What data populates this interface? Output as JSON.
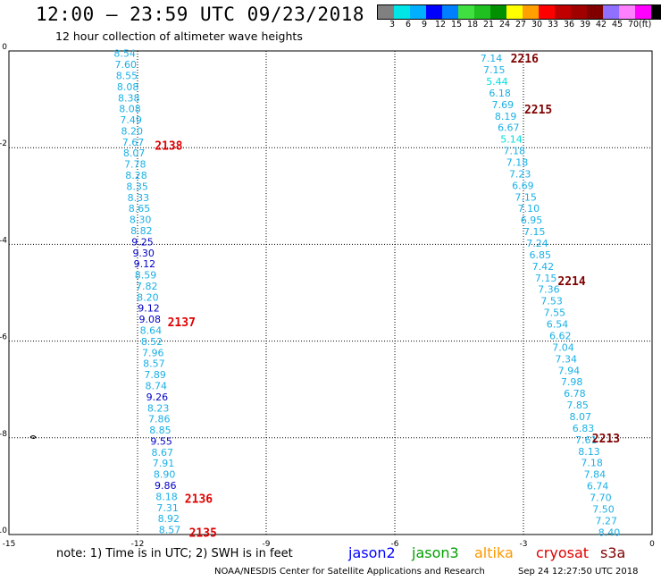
{
  "title": "12:00 – 23:59 UTC 09/23/2018",
  "subtitle": "12 hour collection of altimeter wave heights",
  "colorbar": {
    "colors": [
      "#808080",
      "#00e5e5",
      "#00b0ff",
      "#0000ff",
      "#0080ff",
      "#40e040",
      "#20c020",
      "#009000",
      "#ffff00",
      "#ffa000",
      "#ff0000",
      "#c00000",
      "#a00000",
      "#800000",
      "#9070ff",
      "#ff80ff",
      "#ff00ff",
      "#000000"
    ],
    "ticks": [
      "3",
      "6",
      "9",
      "12",
      "15",
      "18",
      "21",
      "24",
      "27",
      "30",
      "33",
      "36",
      "39",
      "42",
      "45",
      "70",
      "(ft)"
    ]
  },
  "axes": {
    "x_ticks": [
      "-15",
      "-12",
      "-9",
      "-6",
      "-3",
      "0"
    ],
    "x_values": [
      -15,
      -12,
      -9,
      -6,
      -3,
      0
    ],
    "y_ticks": [
      "0",
      "-2",
      "-4",
      "-6",
      "-8",
      "-10"
    ],
    "y_values": [
      0,
      -2,
      -4,
      -6,
      -8,
      -10
    ],
    "xlim": [
      -15,
      0
    ],
    "ylim": [
      -10,
      0
    ]
  },
  "passes": [
    {
      "label": "2138",
      "lon": -11.6,
      "lat": -1.95,
      "color": "#e00000"
    },
    {
      "label": "2137",
      "lon": -11.3,
      "lat": -5.6,
      "color": "#e00000"
    },
    {
      "label": "2136",
      "lon": -10.9,
      "lat": -9.25,
      "color": "#e00000"
    },
    {
      "label": "2135",
      "lon": -10.8,
      "lat": -9.95,
      "color": "#e00000"
    },
    {
      "label": "2216",
      "lon": -3.3,
      "lat": -0.15,
      "color": "#800000"
    },
    {
      "label": "2215",
      "lon": -2.98,
      "lat": -1.2,
      "color": "#800000"
    },
    {
      "label": "2214",
      "lon": -2.2,
      "lat": -4.75,
      "color": "#800000"
    },
    {
      "label": "2213",
      "lon": -1.4,
      "lat": -8.0,
      "color": "#800000"
    }
  ],
  "track_left": [
    {
      "v": "8.54",
      "c": "#1ab0e6"
    },
    {
      "v": "7.60",
      "c": "#1ab0e6"
    },
    {
      "v": "8.55",
      "c": "#1ab0e6"
    },
    {
      "v": "8.08",
      "c": "#1ab0e6"
    },
    {
      "v": "8.38",
      "c": "#1ab0e6"
    },
    {
      "v": "8.08",
      "c": "#1ab0e6"
    },
    {
      "v": "7.49",
      "c": "#1ab0e6"
    },
    {
      "v": "8.20",
      "c": "#1ab0e6"
    },
    {
      "v": "7.67",
      "c": "#1ab0e6"
    },
    {
      "v": "8.07",
      "c": "#1ab0e6"
    },
    {
      "v": "7.78",
      "c": "#1ab0e6"
    },
    {
      "v": "8.28",
      "c": "#1ab0e6"
    },
    {
      "v": "8.35",
      "c": "#1ab0e6"
    },
    {
      "v": "8.33",
      "c": "#1ab0e6"
    },
    {
      "v": "8.65",
      "c": "#1ab0e6"
    },
    {
      "v": "8.30",
      "c": "#1ab0e6"
    },
    {
      "v": "8.82",
      "c": "#1ab0e6"
    },
    {
      "v": "9.25",
      "c": "#0000c8"
    },
    {
      "v": "9.30",
      "c": "#0000c8"
    },
    {
      "v": "9.12",
      "c": "#0000c8"
    },
    {
      "v": "8.59",
      "c": "#1ab0e6"
    },
    {
      "v": "7.82",
      "c": "#1ab0e6"
    },
    {
      "v": "8.20",
      "c": "#1ab0e6"
    },
    {
      "v": "9.12",
      "c": "#0000c8"
    },
    {
      "v": "9.08",
      "c": "#0000c8"
    },
    {
      "v": "8.64",
      "c": "#1ab0e6"
    },
    {
      "v": "8.52",
      "c": "#1ab0e6"
    },
    {
      "v": "7.96",
      "c": "#1ab0e6"
    },
    {
      "v": "8.57",
      "c": "#1ab0e6"
    },
    {
      "v": "7.89",
      "c": "#1ab0e6"
    },
    {
      "v": "8.74",
      "c": "#1ab0e6"
    },
    {
      "v": "9.26",
      "c": "#0000c8"
    },
    {
      "v": "8.23",
      "c": "#1ab0e6"
    },
    {
      "v": "7.86",
      "c": "#1ab0e6"
    },
    {
      "v": "8.85",
      "c": "#1ab0e6"
    },
    {
      "v": "9.55",
      "c": "#0000c8"
    },
    {
      "v": "8.67",
      "c": "#1ab0e6"
    },
    {
      "v": "7.91",
      "c": "#1ab0e6"
    },
    {
      "v": "8.90",
      "c": "#1ab0e6"
    },
    {
      "v": "9.86",
      "c": "#0000c8"
    },
    {
      "v": "8.18",
      "c": "#1ab0e6"
    },
    {
      "v": "7.31",
      "c": "#1ab0e6"
    },
    {
      "v": "8.92",
      "c": "#1ab0e6"
    },
    {
      "v": "8.57",
      "c": "#1ab0e6"
    }
  ],
  "track_right": [
    {
      "v": "7.14",
      "c": "#1ab0e6"
    },
    {
      "v": "7.15",
      "c": "#1ab0e6"
    },
    {
      "v": "5.44",
      "c": "#00e0e0"
    },
    {
      "v": "6.18",
      "c": "#1ab0e6"
    },
    {
      "v": "7.69",
      "c": "#1ab0e6"
    },
    {
      "v": "8.19",
      "c": "#1ab0e6"
    },
    {
      "v": "6.67",
      "c": "#1ab0e6"
    },
    {
      "v": "5.14",
      "c": "#00e0e0"
    },
    {
      "v": "7.18",
      "c": "#1ab0e6"
    },
    {
      "v": "7.18",
      "c": "#1ab0e6"
    },
    {
      "v": "7.23",
      "c": "#1ab0e6"
    },
    {
      "v": "6.69",
      "c": "#1ab0e6"
    },
    {
      "v": "7.15",
      "c": "#1ab0e6"
    },
    {
      "v": "7.10",
      "c": "#1ab0e6"
    },
    {
      "v": "6.95",
      "c": "#1ab0e6"
    },
    {
      "v": "7.15",
      "c": "#1ab0e6"
    },
    {
      "v": "7.24",
      "c": "#1ab0e6"
    },
    {
      "v": "6.85",
      "c": "#1ab0e6"
    },
    {
      "v": "7.42",
      "c": "#1ab0e6"
    },
    {
      "v": "7.15",
      "c": "#1ab0e6"
    },
    {
      "v": "7.36",
      "c": "#1ab0e6"
    },
    {
      "v": "7.53",
      "c": "#1ab0e6"
    },
    {
      "v": "7.55",
      "c": "#1ab0e6"
    },
    {
      "v": "6.54",
      "c": "#1ab0e6"
    },
    {
      "v": "6.62",
      "c": "#1ab0e6"
    },
    {
      "v": "7.04",
      "c": "#1ab0e6"
    },
    {
      "v": "7.34",
      "c": "#1ab0e6"
    },
    {
      "v": "7.94",
      "c": "#1ab0e6"
    },
    {
      "v": "7.98",
      "c": "#1ab0e6"
    },
    {
      "v": "6.78",
      "c": "#1ab0e6"
    },
    {
      "v": "7.85",
      "c": "#1ab0e6"
    },
    {
      "v": "8.07",
      "c": "#1ab0e6"
    },
    {
      "v": "6.83",
      "c": "#1ab0e6"
    },
    {
      "v": "7.61",
      "c": "#1ab0e6"
    },
    {
      "v": "8.13",
      "c": "#1ab0e6"
    },
    {
      "v": "7.18",
      "c": "#1ab0e6"
    },
    {
      "v": "7.84",
      "c": "#1ab0e6"
    },
    {
      "v": "6.74",
      "c": "#1ab0e6"
    },
    {
      "v": "7.70",
      "c": "#1ab0e6"
    },
    {
      "v": "7.50",
      "c": "#1ab0e6"
    },
    {
      "v": "7.27",
      "c": "#1ab0e6"
    },
    {
      "v": "8.40",
      "c": "#1ab0e6"
    }
  ],
  "note": "note:  1) Time is in UTC;  2) SWH is in feet",
  "legend": [
    {
      "name": "jason2",
      "color": "#0000ff"
    },
    {
      "name": "jason3",
      "color": "#00a000"
    },
    {
      "name": "altika",
      "color": "#ff9900"
    },
    {
      "name": "cryosat",
      "color": "#e00000"
    },
    {
      "name": "s3a",
      "color": "#800000"
    }
  ],
  "footer": {
    "credit": "NOAA/NESDIS Center for Satellite Applications and Research",
    "timestamp": "Sep 24 12:27:50 UTC 2018"
  }
}
